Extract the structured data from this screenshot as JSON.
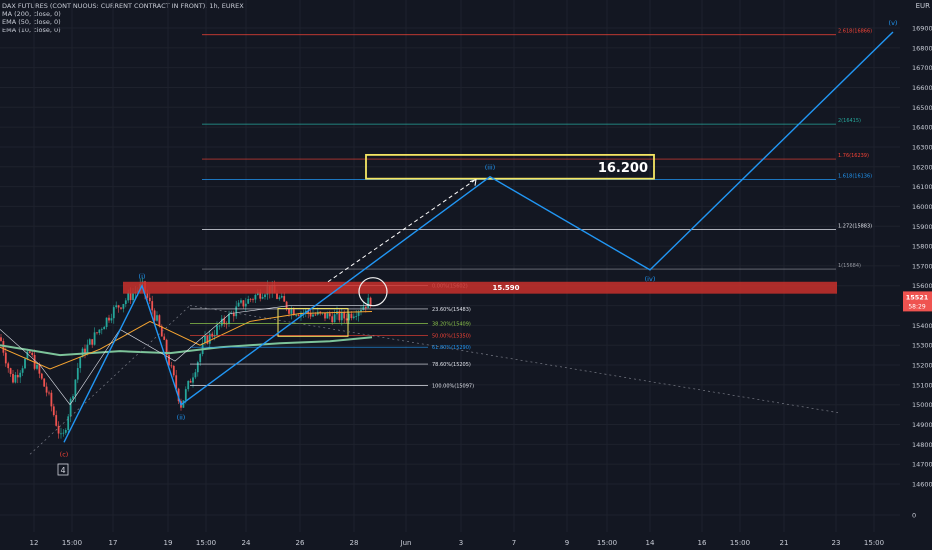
{
  "header": {
    "title": "DAX FUTURES (CONTINUOUS: CURRENT CONTRACT IN FRONT), 1h, EUREX",
    "indicators": [
      "MA (200, close, 0)",
      "EMA (50, close, 0)",
      "EMA (10, close, 0)"
    ]
  },
  "currency": "EUR",
  "colors": {
    "background": "#131722",
    "wave": "#2196f3",
    "resistance": "#c9302c",
    "highlight": "#f5e663",
    "ema50": "#f7a531",
    "ma200": "#7dc49a"
  },
  "chart_data": {
    "type": "line",
    "yaxis_ticks": [
      0,
      14600,
      14700,
      14800,
      14900,
      15000,
      15100,
      15200,
      15300,
      15400,
      15500,
      15600,
      15700,
      15800,
      15900,
      16000,
      16100,
      16200,
      16300,
      16400,
      16500,
      16600,
      16700,
      16800,
      16900
    ],
    "xaxis_ticks": [
      "12",
      "15:00",
      "17",
      "19",
      "15:00",
      "24",
      "26",
      "28",
      "Jun",
      "3",
      "7",
      "9",
      "15:00",
      "14",
      "16",
      "15:00",
      "21",
      "23",
      "15:00"
    ],
    "current_price": "15521",
    "countdown": "58:29",
    "wave_path": [
      {
        "label": "(c)",
        "value": 14810
      },
      {
        "label": "(i)",
        "value": 15600
      },
      {
        "label": "(ii)",
        "value": 15000
      },
      {
        "label": "(iii)",
        "value": 16150
      },
      {
        "label": "(iv)",
        "value": 15680
      },
      {
        "label": "(v)",
        "value": 16880
      }
    ],
    "wave_count_box": "4",
    "fib_retracement": [
      {
        "label": "0.00%(15602)",
        "value": 15602
      },
      {
        "label": "23.60%(15483)",
        "value": 15483
      },
      {
        "label": "38.20%(15409)",
        "value": 15409
      },
      {
        "label": "50.00%(15350)",
        "value": 15350
      },
      {
        "label": "61.80%(15290)",
        "value": 15290
      },
      {
        "label": "78.60%(15205)",
        "value": 15205
      },
      {
        "label": "100.00%(15097)",
        "value": 15097
      }
    ],
    "fib_extension": [
      {
        "label": "1(15684)",
        "value": 15684
      },
      {
        "label": "1.272(15883)",
        "value": 15883
      },
      {
        "label": "1.618(16136)",
        "value": 16136
      },
      {
        "label": "1.76(16239)",
        "value": 16239
      },
      {
        "label": "2(16415)",
        "value": 16415
      },
      {
        "label": "2.618(16866)",
        "value": 16866
      }
    ],
    "resistance_zone": {
      "label": "15.590",
      "low": 15560,
      "high": 15620
    },
    "target_box": {
      "label": "16.200",
      "low": 16140,
      "high": 16260
    }
  }
}
